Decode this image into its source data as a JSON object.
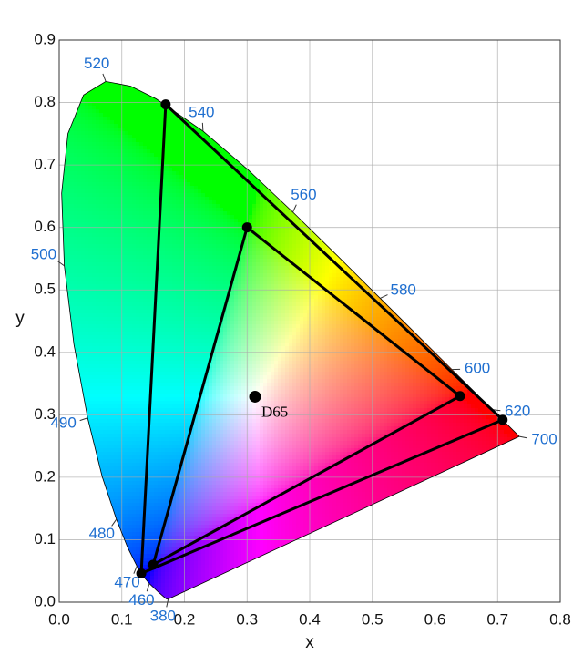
{
  "chart_data": {
    "type": "chromaticity",
    "x_label": "x",
    "y_label": "y",
    "xlim": [
      0,
      0.8
    ],
    "ylim": [
      0,
      0.9
    ],
    "xticks": [
      {
        "value": 0,
        "label": "0.0"
      },
      0.1,
      0.2,
      0.3,
      0.4,
      0.5,
      0.6,
      0.7,
      0.8
    ],
    "yticks": [
      {
        "value": 0,
        "label": "0.0"
      },
      0.1,
      0.2,
      0.3,
      0.4,
      0.5,
      0.6,
      0.7,
      0.8,
      0.9
    ],
    "grid": true,
    "locus": {
      "x": [
        0.1741,
        0.1726,
        0.1714,
        0.1689,
        0.1644,
        0.1566,
        0.144,
        0.1355,
        0.1241,
        0.1096,
        0.0913,
        0.0687,
        0.0454,
        0.0235,
        0.0082,
        0.0039,
        0.0139,
        0.0389,
        0.0743,
        0.1142,
        0.1547,
        0.2296,
        0.3016,
        0.3731,
        0.4441,
        0.5125,
        0.5752,
        0.627,
        0.6658,
        0.6915,
        0.719,
        0.7347
      ],
      "y": [
        0.005,
        0.0048,
        0.0051,
        0.0069,
        0.0109,
        0.0177,
        0.0297,
        0.0399,
        0.0578,
        0.0868,
        0.1327,
        0.2007,
        0.295,
        0.4127,
        0.5384,
        0.6548,
        0.7502,
        0.812,
        0.8338,
        0.8262,
        0.8059,
        0.7543,
        0.6923,
        0.6245,
        0.5547,
        0.4866,
        0.4242,
        0.3725,
        0.334,
        0.3083,
        0.2809,
        0.2653
      ]
    },
    "wavelength_labels": [
      {
        "label": "380",
        "x": 0.1741,
        "y": 0.005
      },
      {
        "label": "460",
        "x": 0.144,
        "y": 0.0297
      },
      {
        "label": "470",
        "x": 0.1241,
        "y": 0.0578
      },
      {
        "label": "480",
        "x": 0.0913,
        "y": 0.1327
      },
      {
        "label": "490",
        "x": 0.0454,
        "y": 0.295
      },
      {
        "label": "500",
        "x": 0.0082,
        "y": 0.5384
      },
      {
        "label": "520",
        "x": 0.0743,
        "y": 0.8338
      },
      {
        "label": "540",
        "x": 0.2296,
        "y": 0.7543
      },
      {
        "label": "560",
        "x": 0.3731,
        "y": 0.6245
      },
      {
        "label": "580",
        "x": 0.5125,
        "y": 0.4866
      },
      {
        "label": "600",
        "x": 0.627,
        "y": 0.3725
      },
      {
        "label": "620",
        "x": 0.6915,
        "y": 0.3083
      },
      {
        "label": "700",
        "x": 0.7347,
        "y": 0.2653
      }
    ],
    "label_color": "#1f6fd0",
    "triangles": [
      {
        "x": [
          0.708,
          0.17,
          0.131
        ],
        "y": [
          0.292,
          0.797,
          0.046
        ]
      },
      {
        "x": [
          0.64,
          0.3,
          0.15
        ],
        "y": [
          0.33,
          0.6,
          0.06
        ]
      }
    ],
    "white_point": {
      "label": "D65",
      "x": 0.3127,
      "y": 0.329
    }
  }
}
